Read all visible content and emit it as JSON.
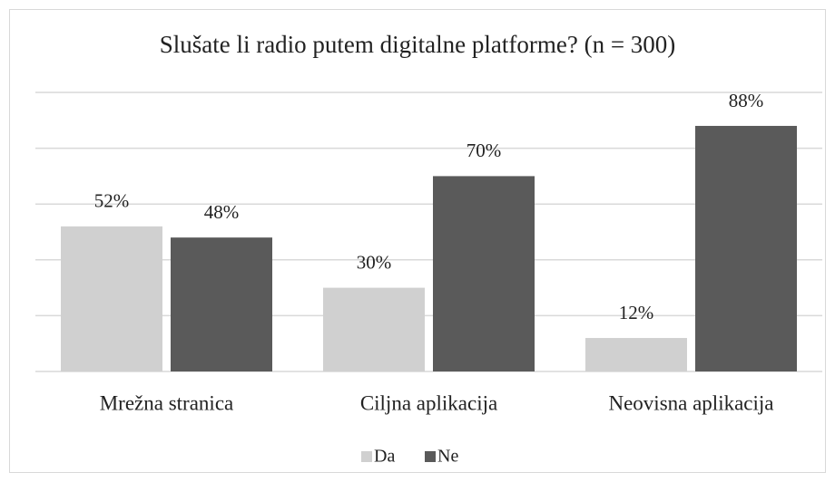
{
  "chart_data": {
    "type": "bar",
    "title": "Slušate li radio putem digitalne platforme? (n = 300)",
    "categories": [
      "Mrežna stranica",
      "Ciljna aplikacija",
      "Neovisna aplikacija"
    ],
    "series": [
      {
        "name": "Da",
        "color": "#d0d0d0",
        "values": [
          52,
          30,
          12
        ],
        "value_labels": [
          "52%",
          "30%",
          "12%"
        ]
      },
      {
        "name": "Ne",
        "color": "#5a5a5a",
        "values": [
          48,
          70,
          88
        ],
        "value_labels": [
          "48%",
          "70%",
          "88%"
        ]
      }
    ],
    "ylim": [
      0,
      100
    ],
    "yticks": [
      0,
      20,
      40,
      60,
      80,
      100
    ],
    "grid": true,
    "legend": "bottom"
  }
}
